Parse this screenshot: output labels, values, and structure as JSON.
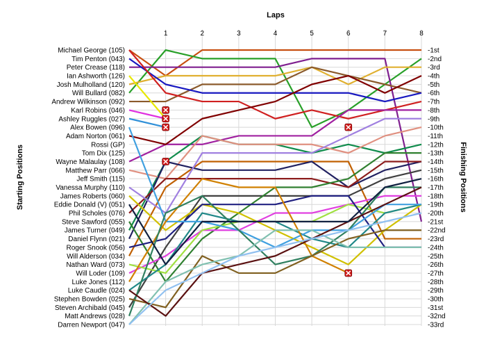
{
  "chart_data": {
    "type": "line",
    "title": "",
    "xlabel": "Laps",
    "ylabel_left": "Starting Positions",
    "ylabel_right": "Finishing Positions",
    "x": [
      0,
      1,
      2,
      3,
      4,
      5,
      6,
      7,
      8
    ],
    "x_tick_labels": [
      "1",
      "2",
      "3",
      "4",
      "5",
      "6",
      "7",
      "8"
    ],
    "ylim": [
      1,
      33
    ],
    "grid": true,
    "starting_labels": [
      "Michael George (105)",
      "Tim Penton (043)",
      "Peter Crease (118)",
      "Ian Ashworth (126)",
      "Josh Mulholland (120)",
      "Will Bullard (082)",
      "Andrew Wilkinson (092)",
      "Karl Robins (046)",
      "Ashley Ruggles (027)",
      "Alex Bowen (096)",
      "Adam Norton (061)",
      "Rossi (GP)",
      "Tom Dix (125)",
      "Wayne Malaulay (108)",
      "Matthew Parr (066)",
      "Jeff Smith (115)",
      "Vanessa Murphy (110)",
      "James Roberts (060)",
      "Eddie Donald (V) (051)",
      "Phil Scholes (076)",
      "Steve Sawford (055)",
      "James Turner (049)",
      "Daniel Flynn (021)",
      "Roger Snook (056)",
      "Will Alderson (034)",
      "Nathan Ward (073)",
      "Will Loder (109)",
      "Luke Jones (112)",
      "Luke Caudle (024)",
      "Stephen Bowden (025)",
      "Steven Archibald (045)",
      "Matt Andrews (028)",
      "Darren Newport (047)"
    ],
    "finishing_labels": [
      "1st",
      "2nd",
      "3rd",
      "4th",
      "5th",
      "6th",
      "7th",
      "8th",
      "9th",
      "10th",
      "11th",
      "12th",
      "13th",
      "14th",
      "15th",
      "16th",
      "17th",
      "18th",
      "19th",
      "20th",
      "21st",
      "22nd",
      "23rd",
      "24th",
      "25th",
      "26th",
      "27th",
      "28th",
      "29th",
      "30th",
      "31st",
      "32nd",
      "33rd"
    ],
    "series": [
      {
        "color": "#c84f10",
        "positions": [
          1,
          4,
          1,
          1,
          1,
          1,
          1,
          1,
          1
        ]
      },
      {
        "color": "#28a028",
        "positions": [
          6,
          1,
          2,
          2,
          2,
          10,
          8,
          5,
          2
        ]
      },
      {
        "color": "#7f1f8f",
        "positions": [
          3,
          3,
          3,
          3,
          3,
          2,
          2,
          2,
          21
        ]
      },
      {
        "color": "#e0b030",
        "positions": [
          5,
          4,
          4,
          4,
          4,
          3,
          5,
          3,
          3
        ]
      },
      {
        "color": "#8b5a2b",
        "positions": [
          7,
          7,
          5,
          5,
          5,
          3,
          4,
          5,
          6
        ]
      },
      {
        "color": "#1818c0",
        "positions": [
          2,
          5,
          6,
          6,
          6,
          6,
          6,
          7,
          6
        ]
      },
      {
        "color": "#d02020",
        "positions": [
          1,
          6,
          7,
          7,
          9,
          8,
          9,
          8,
          7
        ]
      },
      {
        "color": "#e030e0",
        "positions": [
          8,
          9
        ]
      },
      {
        "color": "#e8e800",
        "positions": [
          4,
          9
        ]
      },
      {
        "color": "#3090d8",
        "positions": [
          9,
          10
        ]
      },
      {
        "color": "#a020a0",
        "positions": [
          14,
          12,
          12,
          11,
          11,
          11,
          8,
          8,
          8
        ]
      },
      {
        "color": "#800000",
        "positions": [
          11,
          12,
          9,
          8,
          7,
          5,
          4,
          6,
          4
        ]
      },
      {
        "color": "#108c4c",
        "positions": [
          22,
          14,
          11,
          12,
          12,
          13,
          12,
          13,
          12
        ]
      },
      {
        "color": "#e09080",
        "positions": [
          15,
          16,
          11,
          12,
          12,
          12,
          13,
          11,
          10
        ]
      },
      {
        "color": "#c06000",
        "positions": [
          25,
          17,
          14,
          14,
          14,
          14,
          14,
          23,
          23
        ]
      },
      {
        "color": "#202060",
        "positions": [
          23,
          14,
          15,
          15,
          15,
          14,
          17,
          15,
          14
        ]
      },
      {
        "color": "#8c1c1c",
        "positions": [
          20,
          16,
          16,
          16,
          16,
          16,
          17,
          14,
          14
        ]
      },
      {
        "color": "#a080e0",
        "positions": [
          17,
          20,
          13,
          13,
          13,
          13,
          11,
          9,
          9
        ]
      },
      {
        "color": "#404040",
        "positions": [
          31,
          24,
          18,
          18,
          18,
          18,
          18,
          16,
          15
        ]
      },
      {
        "color": "#308030",
        "positions": [
          21,
          28,
          23,
          20,
          17,
          17,
          16,
          13,
          13
        ]
      },
      {
        "color": "#e040e0",
        "positions": [
          27,
          25,
          22,
          22,
          20,
          20,
          19,
          18,
          18
        ]
      },
      {
        "color": "#d0c000",
        "positions": [
          18,
          22,
          19,
          20,
          22,
          24,
          26,
          22,
          19
        ]
      },
      {
        "color": "#a0e040",
        "positions": [
          26,
          27,
          22,
          21,
          21,
          21,
          19,
          20,
          19
        ]
      },
      {
        "color": "#202080",
        "positions": [
          24,
          23,
          19,
          19,
          19,
          18,
          18,
          24,
          24
        ]
      },
      {
        "color": "#208888",
        "positions": [
          29,
          26,
          20,
          21,
          21,
          23,
          24,
          20,
          19
        ]
      },
      {
        "color": "#40a0e0",
        "positions": [
          10,
          21,
          21,
          22,
          24,
          22,
          22,
          19,
          19
        ]
      },
      {
        "color": "#d08000",
        "positions": [
          28,
          21,
          16,
          17,
          17,
          25,
          27
        ]
      },
      {
        "color": "#308060",
        "positions": [
          32,
          20,
          18,
          22,
          26,
          25,
          22,
          17,
          17
        ]
      },
      {
        "color": "#806020",
        "positions": [
          30,
          31,
          25,
          27,
          27,
          25,
          23,
          22,
          22
        ]
      },
      {
        "color": "#80c0b0",
        "positions": [
          33,
          28,
          26,
          25,
          22,
          22,
          24,
          24,
          24
        ]
      },
      {
        "color": "#5a1010",
        "positions": [
          29,
          32,
          27,
          26,
          25,
          23,
          21,
          19,
          17
        ]
      },
      {
        "color": "#102040",
        "positions": [
          19,
          26,
          21,
          21,
          21,
          21,
          21,
          17,
          16
        ]
      },
      {
        "color": "#90c0f0",
        "positions": [
          33,
          29,
          27,
          25,
          24,
          23,
          22,
          21,
          20
        ]
      }
    ],
    "retirements": [
      {
        "lap": 1,
        "position": 8
      },
      {
        "lap": 1,
        "position": 9
      },
      {
        "lap": 1,
        "position": 10
      },
      {
        "lap": 1,
        "position": 14
      },
      {
        "lap": 6,
        "position": 10
      },
      {
        "lap": 6,
        "position": 27
      }
    ]
  }
}
